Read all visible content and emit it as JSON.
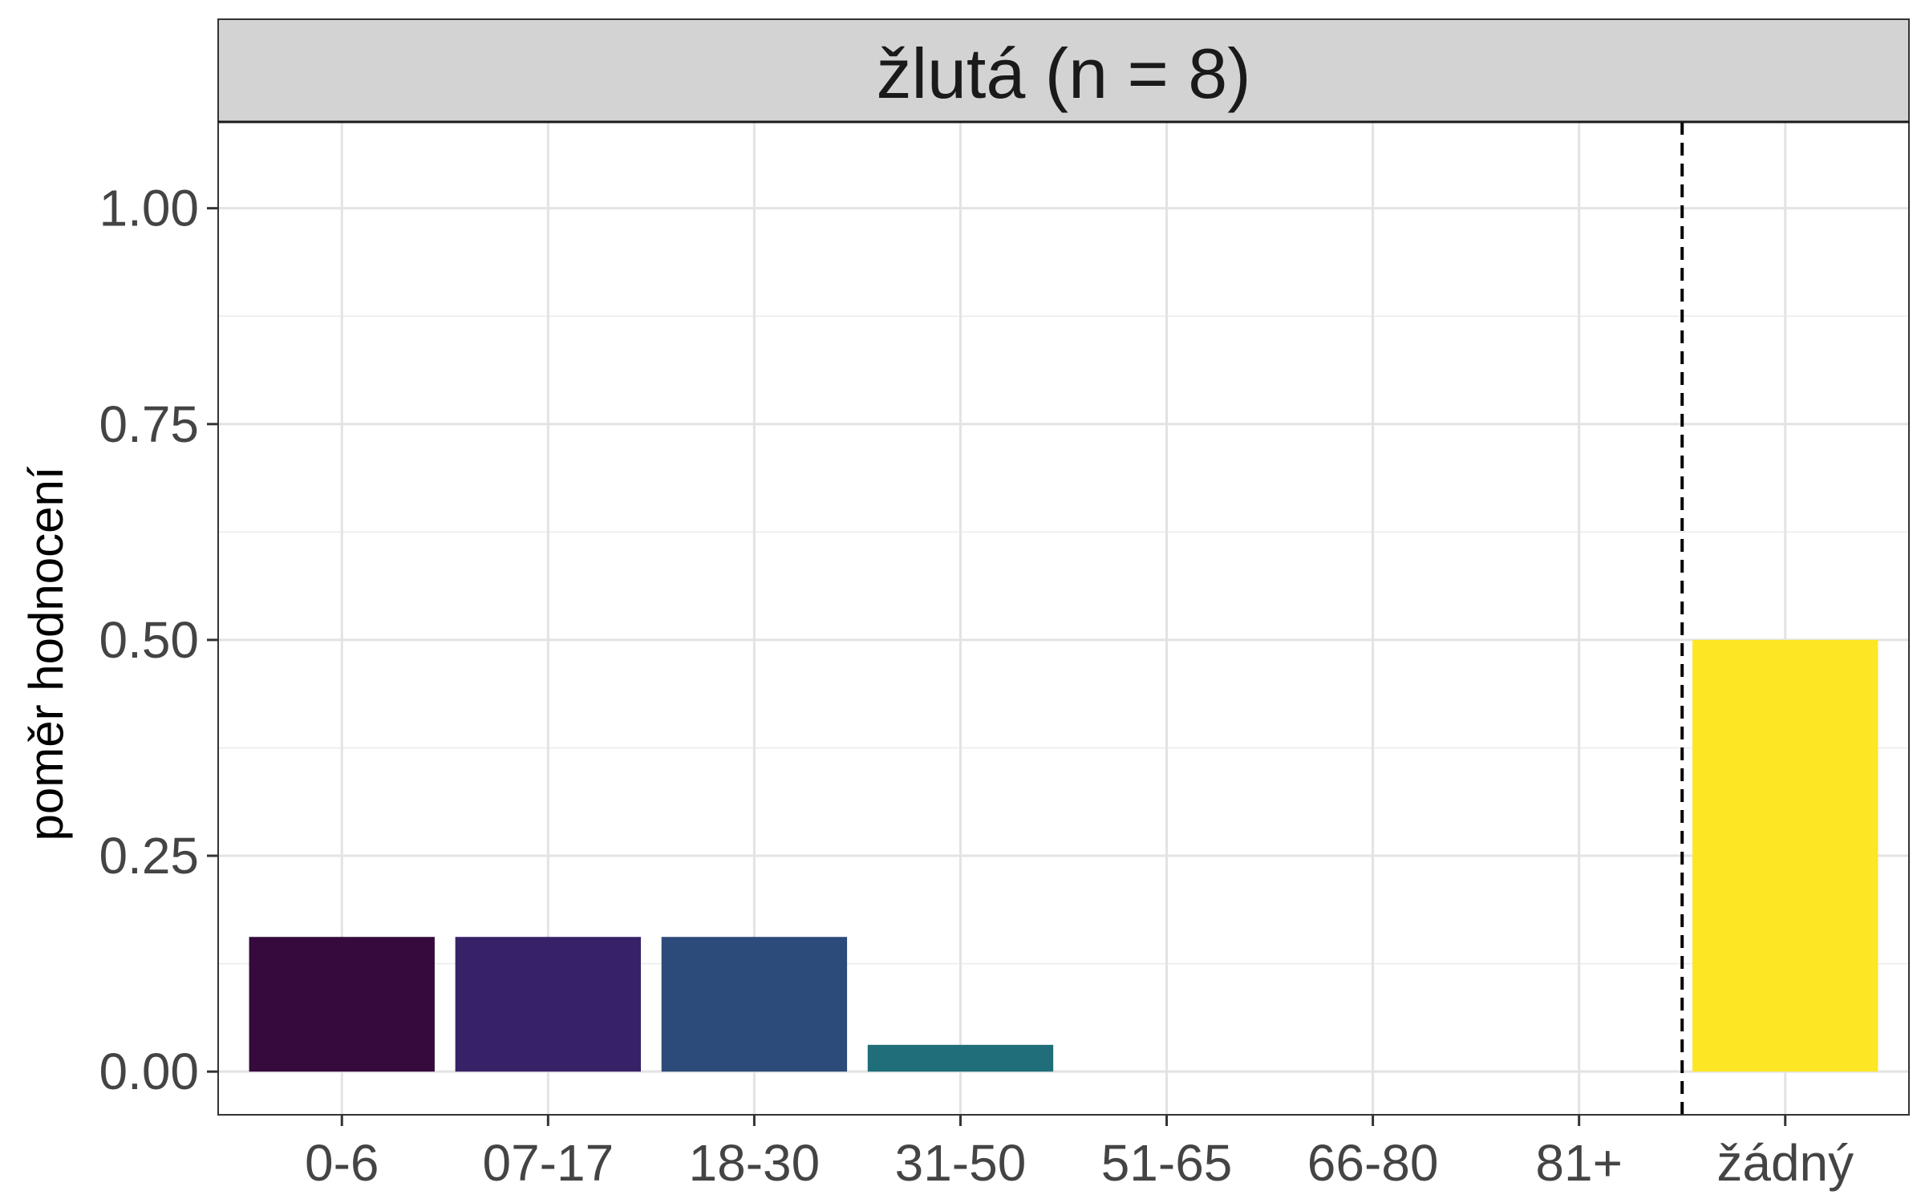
{
  "chart_data": {
    "type": "bar",
    "title": "žlutá (n = 8)",
    "xlabel": "",
    "ylabel": "poměr hodnocení",
    "categories": [
      "0-6",
      "07-17",
      "18-30",
      "31-50",
      "51-65",
      "66-80",
      "81+",
      "žádný"
    ],
    "values": [
      0.156,
      0.156,
      0.156,
      0.031,
      0,
      0,
      0,
      0.5
    ],
    "colors": [
      "#360a3d",
      "#372268",
      "#2c4a7a",
      "#1f6e7a",
      "#1f9a8a",
      "#4cc26c",
      "#a8db34",
      "#fde725"
    ],
    "ylim": [
      -0.05,
      1.1
    ],
    "yticks": [
      0.0,
      0.25,
      0.5,
      0.75,
      1.0
    ],
    "ytick_labels": [
      "0.00",
      "0.25",
      "0.50",
      "0.75",
      "1.00"
    ],
    "separator_between": [
      "81+",
      "žádný"
    ],
    "grid": true,
    "legend": "none"
  }
}
